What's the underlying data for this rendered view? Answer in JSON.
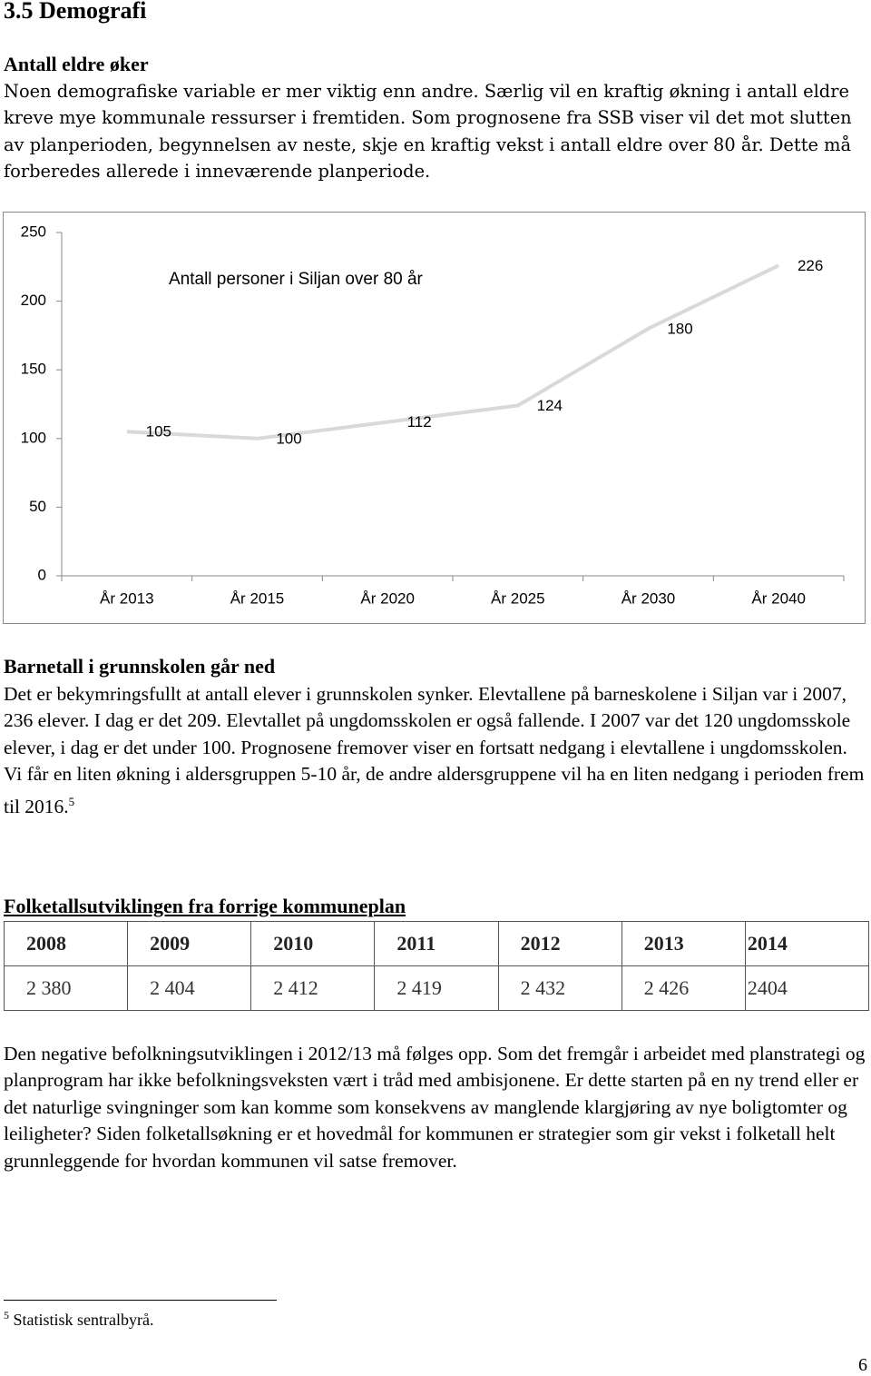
{
  "heading": "3.5 Demografi",
  "section1": {
    "title": "Antall eldre øker",
    "text": "Noen demografiske variable er mer viktig enn andre. Særlig vil en kraftig økning i antall eldre kreve mye kommunale ressurser i fremtiden. Som prognosene fra SSB viser vil det mot slutten av planperioden, begynnelsen av neste, skje en kraftig vekst i antall eldre over 80 år. Dette må forberedes allerede i inneværende planperiode."
  },
  "chart_data": {
    "type": "line",
    "title": "Antall personer i Siljan over 80 år",
    "categories": [
      "År 2013",
      "År 2015",
      "År 2020",
      "År 2025",
      "År 2030",
      "År 2040"
    ],
    "values": [
      105,
      100,
      112,
      124,
      180,
      226
    ],
    "color": "#d9d9d9",
    "ylim": [
      0,
      250
    ],
    "yticks": [
      0,
      50,
      100,
      150,
      200,
      250
    ],
    "grid": false,
    "data_labels": true
  },
  "section2": {
    "title": "Barnetall i grunnskolen går ned",
    "text": "Det er bekymringsfullt at antall elever i grunnskolen synker. Elevtallene på barneskolene i Siljan var i 2007, 236 elever. I dag er det 209. Elevtallet på ungdomsskolen er også fallende. I 2007 var det 120 ungdomsskole elever, i dag er det under 100. Prognosene fremover viser en fortsatt nedgang i elevtallene i ungdomsskolen. Vi får en liten økning i aldersgruppen 5-10 år, de andre aldersgruppene vil ha en liten nedgang i perioden frem til 2016.",
    "footnote_ref": "5"
  },
  "section3": {
    "title": "Folketallsutviklingen fra forrige kommuneplan",
    "table": {
      "header": [
        "2008",
        "2009",
        "2010",
        "2011",
        "2012",
        "2013",
        "2014"
      ],
      "rows": [
        [
          "2 380",
          "2 404",
          "2 412",
          "2 419",
          "2 432",
          "2 426",
          "2404"
        ]
      ]
    },
    "text": "Den negative befolkningsutviklingen i 2012/13 må følges opp. Som det fremgår i arbeidet med planstrategi og planprogram har ikke befolkningsveksten vært i tråd med ambisjonene. Er dette starten på en ny trend eller er det naturlige svingninger som kan komme som konsekvens av manglende klargjøring av nye boligtomter og leiligheter? Siden folketallsøkning er et hovedmål for kommunen er strategier som gir vekst i folketall helt grunnleggende for hvordan kommunen vil satse fremover."
  },
  "footnote": {
    "number": "5",
    "text": "Statistisk sentralbyrå."
  },
  "page_number": "6"
}
